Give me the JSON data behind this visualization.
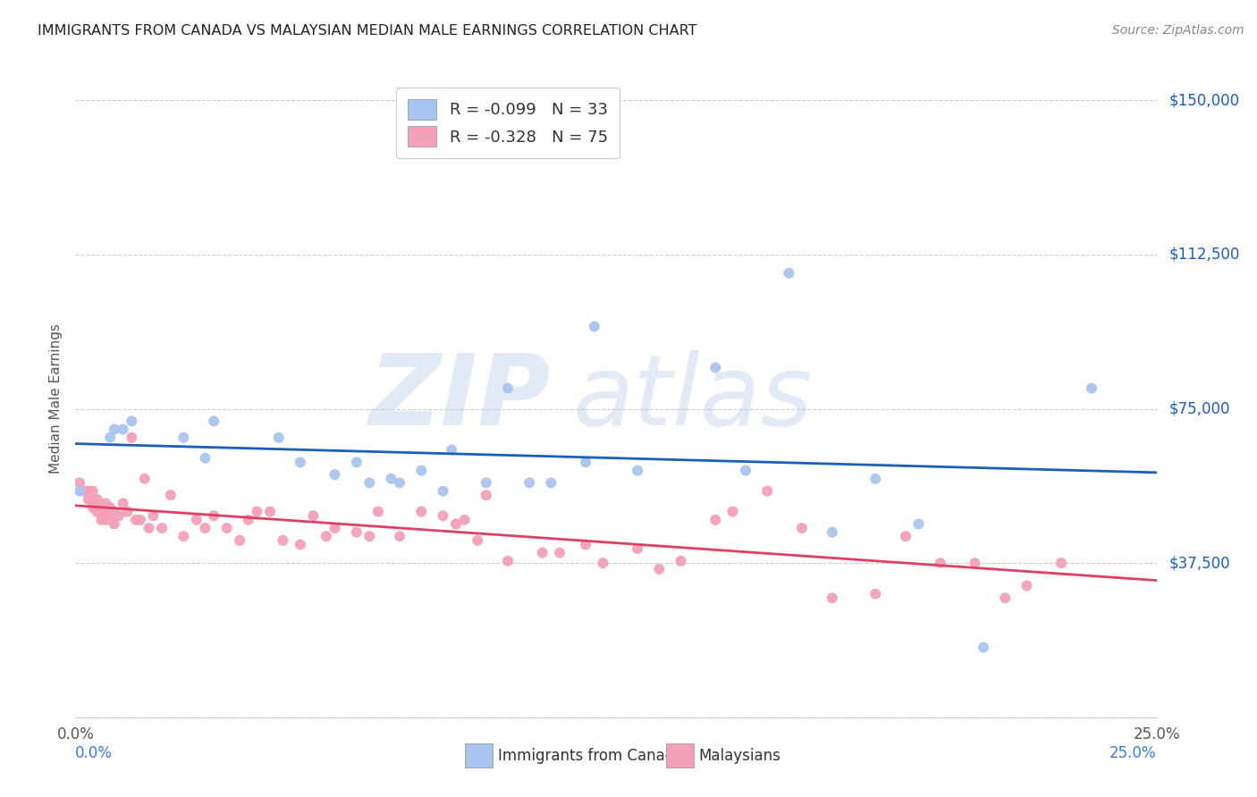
{
  "title": "IMMIGRANTS FROM CANADA VS MALAYSIAN MEDIAN MALE EARNINGS CORRELATION CHART",
  "source": "Source: ZipAtlas.com",
  "ylabel": "Median Male Earnings",
  "xlim": [
    0.0,
    0.25
  ],
  "ylim": [
    0,
    155000
  ],
  "legend_canada": "R = -0.099   N = 33",
  "legend_malaysians": "R = -0.328   N = 75",
  "color_canada": "#a8c4f0",
  "color_malaysians": "#f4a0b8",
  "line_color_canada": "#1a5fbd",
  "line_color_malaysians": "#e04060",
  "background_color": "#ffffff",
  "ytick_vals": [
    0,
    37500,
    75000,
    112500,
    150000
  ],
  "ytick_lbls": [
    "",
    "$37,500",
    "$75,000",
    "$112,500",
    "$150,000"
  ],
  "canada_scatter_x": [
    0.001,
    0.008,
    0.009,
    0.011,
    0.013,
    0.025,
    0.03,
    0.032,
    0.047,
    0.052,
    0.06,
    0.065,
    0.068,
    0.073,
    0.075,
    0.08,
    0.085,
    0.087,
    0.095,
    0.1,
    0.105,
    0.11,
    0.118,
    0.12,
    0.13,
    0.148,
    0.155,
    0.165,
    0.175,
    0.185,
    0.195,
    0.21,
    0.235
  ],
  "canada_scatter_y": [
    55000,
    68000,
    70000,
    70000,
    72000,
    68000,
    63000,
    72000,
    68000,
    62000,
    59000,
    62000,
    57000,
    58000,
    57000,
    60000,
    55000,
    65000,
    57000,
    80000,
    57000,
    57000,
    62000,
    95000,
    60000,
    85000,
    60000,
    108000,
    45000,
    58000,
    47000,
    17000,
    80000
  ],
  "malaysian_scatter_x": [
    0.001,
    0.002,
    0.003,
    0.003,
    0.004,
    0.004,
    0.004,
    0.005,
    0.005,
    0.005,
    0.006,
    0.006,
    0.007,
    0.007,
    0.007,
    0.008,
    0.008,
    0.008,
    0.009,
    0.009,
    0.01,
    0.011,
    0.012,
    0.013,
    0.014,
    0.015,
    0.016,
    0.017,
    0.018,
    0.02,
    0.022,
    0.025,
    0.028,
    0.03,
    0.032,
    0.035,
    0.038,
    0.04,
    0.042,
    0.045,
    0.048,
    0.052,
    0.055,
    0.058,
    0.06,
    0.065,
    0.068,
    0.07,
    0.075,
    0.08,
    0.085,
    0.088,
    0.09,
    0.093,
    0.095,
    0.1,
    0.108,
    0.112,
    0.118,
    0.122,
    0.13,
    0.135,
    0.14,
    0.148,
    0.152,
    0.16,
    0.168,
    0.175,
    0.185,
    0.192,
    0.2,
    0.208,
    0.215,
    0.22,
    0.228
  ],
  "malaysian_scatter_y": [
    57000,
    55000,
    53000,
    55000,
    51000,
    52000,
    55000,
    53000,
    51000,
    50000,
    48000,
    50000,
    48000,
    52000,
    50000,
    51000,
    49000,
    50000,
    47000,
    50000,
    49000,
    52000,
    50000,
    68000,
    48000,
    48000,
    58000,
    46000,
    49000,
    46000,
    54000,
    44000,
    48000,
    46000,
    49000,
    46000,
    43000,
    48000,
    50000,
    50000,
    43000,
    42000,
    49000,
    44000,
    46000,
    45000,
    44000,
    50000,
    44000,
    50000,
    49000,
    47000,
    48000,
    43000,
    54000,
    38000,
    40000,
    40000,
    42000,
    37500,
    41000,
    36000,
    38000,
    48000,
    50000,
    55000,
    46000,
    29000,
    30000,
    44000,
    37500,
    37500,
    29000,
    32000,
    37500
  ]
}
